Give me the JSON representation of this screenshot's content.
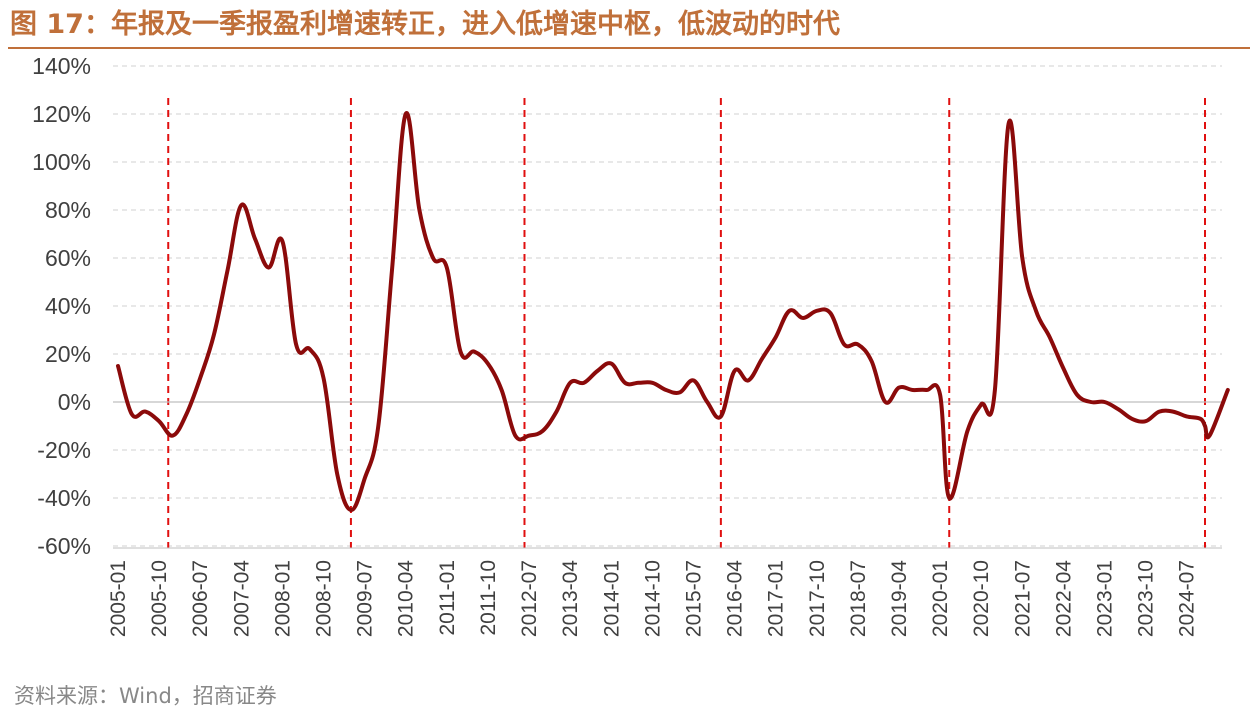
{
  "figure_title": "图 17：年报及一季报盈利增速转正，进入低增速中枢，低波动的时代",
  "source_note": "资料来源：Wind，招商证券",
  "colors": {
    "title": "#c0703a",
    "line": "#8b0a0a",
    "dashed_marker": "#e01010",
    "grid": "#d9d9d9",
    "axis_text": "#404040",
    "source_text": "#888888"
  },
  "chart_data": {
    "type": "line",
    "ylim": [
      -60,
      140
    ],
    "y_ticks": [
      -60,
      -40,
      -20,
      0,
      20,
      40,
      60,
      80,
      100,
      120,
      140
    ],
    "y_tick_labels": [
      "-60%",
      "-40%",
      "-20%",
      "0%",
      "20%",
      "40%",
      "60%",
      "80%",
      "100%",
      "120%",
      "140%"
    ],
    "x_tick_labels": [
      "2005-01",
      "2005-10",
      "2006-07",
      "2007-04",
      "2008-01",
      "2008-10",
      "2009-07",
      "2010-04",
      "2011-01",
      "2011-10",
      "2012-07",
      "2013-04",
      "2014-01",
      "2014-10",
      "2015-07",
      "2016-04",
      "2017-01",
      "2017-10",
      "2018-07",
      "2019-04",
      "2020-01",
      "2020-10",
      "2021-07",
      "2022-04",
      "2023-01",
      "2023-10",
      "2024-07"
    ],
    "grid": "horizontal dashed",
    "vertical_markers": [
      "2005-12",
      "2009-04",
      "2012-06",
      "2016-01",
      "2020-03",
      "2024-11"
    ],
    "series": [
      {
        "points": [
          [
            "2005-01",
            15
          ],
          [
            "2005-04",
            -5
          ],
          [
            "2005-07",
            -4
          ],
          [
            "2005-10",
            -8
          ],
          [
            "2006-01",
            -14
          ],
          [
            "2006-04",
            -5
          ],
          [
            "2006-07",
            10
          ],
          [
            "2006-10",
            28
          ],
          [
            "2007-01",
            55
          ],
          [
            "2007-04",
            82
          ],
          [
            "2007-07",
            68
          ],
          [
            "2007-10",
            56
          ],
          [
            "2008-01",
            67
          ],
          [
            "2008-04",
            24
          ],
          [
            "2008-07",
            22
          ],
          [
            "2008-10",
            10
          ],
          [
            "2009-01",
            -30
          ],
          [
            "2009-04",
            -45
          ],
          [
            "2009-07",
            -32
          ],
          [
            "2009-10",
            -10
          ],
          [
            "2010-01",
            55
          ],
          [
            "2010-04",
            120
          ],
          [
            "2010-07",
            80
          ],
          [
            "2010-10",
            60
          ],
          [
            "2011-01",
            56
          ],
          [
            "2011-04",
            21
          ],
          [
            "2011-07",
            21
          ],
          [
            "2011-10",
            16
          ],
          [
            "2012-01",
            5
          ],
          [
            "2012-04",
            -14
          ],
          [
            "2012-07",
            -14
          ],
          [
            "2012-10",
            -12
          ],
          [
            "2013-01",
            -4
          ],
          [
            "2013-04",
            8
          ],
          [
            "2013-07",
            8
          ],
          [
            "2013-10",
            13
          ],
          [
            "2014-01",
            16
          ],
          [
            "2014-04",
            8
          ],
          [
            "2014-07",
            8
          ],
          [
            "2014-10",
            8
          ],
          [
            "2015-01",
            5
          ],
          [
            "2015-04",
            4
          ],
          [
            "2015-07",
            9
          ],
          [
            "2015-10",
            0
          ],
          [
            "2016-01",
            -6
          ],
          [
            "2016-04",
            13
          ],
          [
            "2016-07",
            9
          ],
          [
            "2016-10",
            18
          ],
          [
            "2017-01",
            27
          ],
          [
            "2017-04",
            38
          ],
          [
            "2017-07",
            35
          ],
          [
            "2017-10",
            38
          ],
          [
            "2018-01",
            37
          ],
          [
            "2018-04",
            24
          ],
          [
            "2018-07",
            24
          ],
          [
            "2018-10",
            17
          ],
          [
            "2019-01",
            0
          ],
          [
            "2019-04",
            6
          ],
          [
            "2019-07",
            5
          ],
          [
            "2019-10",
            5
          ],
          [
            "2020-01",
            3
          ],
          [
            "2020-03",
            -40
          ],
          [
            "2020-07",
            -12
          ],
          [
            "2020-10",
            -1
          ],
          [
            "2021-01",
            5
          ],
          [
            "2021-04",
            116
          ],
          [
            "2021-07",
            60
          ],
          [
            "2021-10",
            38
          ],
          [
            "2022-01",
            27
          ],
          [
            "2022-04",
            14
          ],
          [
            "2022-07",
            3
          ],
          [
            "2022-10",
            0
          ],
          [
            "2023-01",
            0
          ],
          [
            "2023-04",
            -3
          ],
          [
            "2023-07",
            -7
          ],
          [
            "2023-10",
            -8
          ],
          [
            "2024-01",
            -4
          ],
          [
            "2024-04",
            -4
          ],
          [
            "2024-07",
            -6
          ],
          [
            "2024-10",
            -7
          ],
          [
            "2024-11",
            -10
          ],
          [
            "2024-12",
            -14
          ],
          [
            "2025-04",
            5
          ]
        ]
      }
    ]
  }
}
